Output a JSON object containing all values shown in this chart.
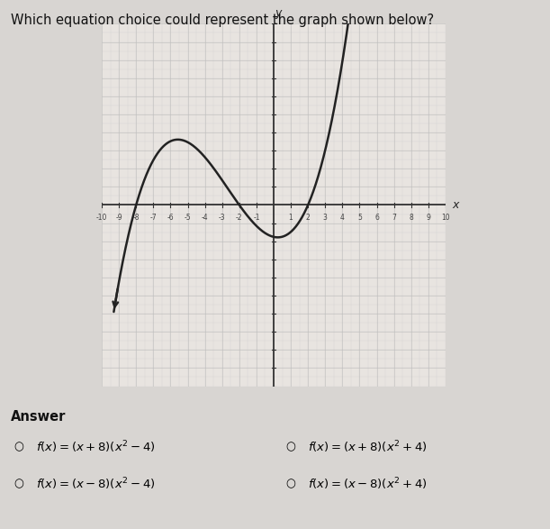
{
  "title": "Which equation choice could represent the graph shown below?",
  "xlim": [
    -10,
    10
  ],
  "ylim": [
    -10,
    10
  ],
  "curve_color": "#222222",
  "grid_color": "#c0bfbf",
  "axis_color": "#333333",
  "background_color": "#e8e4e0",
  "plot_bg_color": "#e8e4e0",
  "outer_bg_color": "#d8d5d2",
  "scale_factor": 0.055,
  "x_start": -9.3,
  "x_end": 4.8,
  "answers_left": [
    "f(x) = (x + 8)(x² − 4)",
    "f(x) = (x − 8)(x² − 4)"
  ],
  "answers_right": [
    "f(x) = (x + 8)(x² + 4)",
    "f(x) = (x − 8)(x² + 4)"
  ]
}
